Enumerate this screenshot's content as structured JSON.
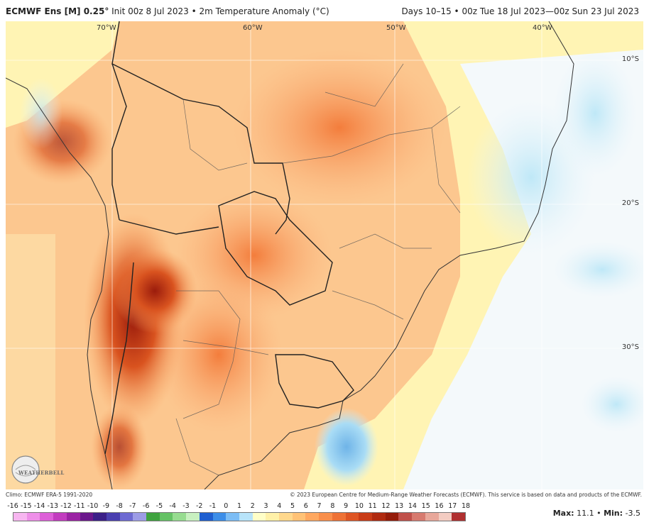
{
  "header": {
    "model": "ECMWF Ens [M] 0.25°",
    "init": "Init 00z 8 Jul 2023",
    "sep": "•",
    "field": "2m Temperature Anomaly (°C)",
    "period": "Days 10–15 • 00z Tue 18 Jul 2023—00z Sun 23 Jul 2023"
  },
  "map": {
    "lon_labels": [
      "70°W",
      "60°W",
      "50°W",
      "40°W"
    ],
    "lat_labels": [
      "10°S",
      "20°S",
      "30°S"
    ],
    "logo_text": "WEATHERBELL"
  },
  "footer": {
    "climo": "Climo: ECMWF ERA-5 1991-2020",
    "copyright": "© 2023 European Centre for Medium-Range Weather Forecasts (ECMWF). This service is based on data and products of the ECMWF."
  },
  "colorbar": {
    "ticks": [
      "-16",
      "-15",
      "-14",
      "-13",
      "-12",
      "-11",
      "-10",
      "-9",
      "-8",
      "-7",
      "-6",
      "-5",
      "-4",
      "-3",
      "-2",
      "-1",
      "0",
      "1",
      "2",
      "3",
      "4",
      "5",
      "6",
      "7",
      "8",
      "9",
      "10",
      "11",
      "12",
      "13",
      "14",
      "15",
      "16",
      "17",
      "18"
    ],
    "colors": [
      "#f7b6f0",
      "#ee8fe8",
      "#dd5fd8",
      "#c23cbf",
      "#9b23a4",
      "#6b178c",
      "#3b1f88",
      "#4a3fb0",
      "#6e6ad2",
      "#9d9ce6",
      "#3fa33f",
      "#65c265",
      "#97dc90",
      "#c8f0c0",
      "#1f5fd0",
      "#3d8ee8",
      "#7cbdf5",
      "#b8e4fa",
      "#ffffc8",
      "#fff1a8",
      "#ffd88c",
      "#ffc276",
      "#ffa860",
      "#f98f4b",
      "#ee7236",
      "#de5524",
      "#c93c17",
      "#b02a10",
      "#951c0a",
      "#c0504a",
      "#d77a6f",
      "#e8a79a",
      "#f3ccc2",
      "#b03030"
    ]
  },
  "stats": {
    "max_label": "Max:",
    "max": "11.1",
    "sep": "•",
    "min_label": "Min:",
    "min": "-3.5"
  }
}
